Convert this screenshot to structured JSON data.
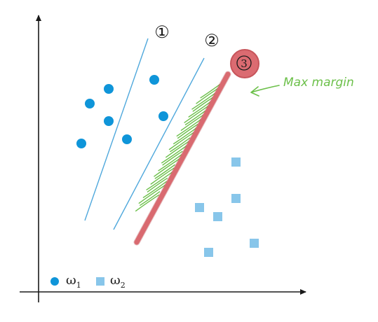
{
  "labels": {
    "line1": "①",
    "line2": "②",
    "line3": "3",
    "annotation": "Max margin"
  },
  "legend": [
    {
      "symbol": "circle",
      "text": "ω",
      "sub": "1"
    },
    {
      "symbol": "square",
      "text": "ω",
      "sub": "2"
    }
  ],
  "colors": {
    "class1": "#0f95d9",
    "class2": "#88c6ea",
    "boundary": "#4fa8dc",
    "best_boundary": "#d96a70",
    "annotation": "#6cc04a"
  },
  "icons": [
    "arrow-up-icon",
    "arrow-right-icon",
    "arrow-left-icon"
  ]
}
